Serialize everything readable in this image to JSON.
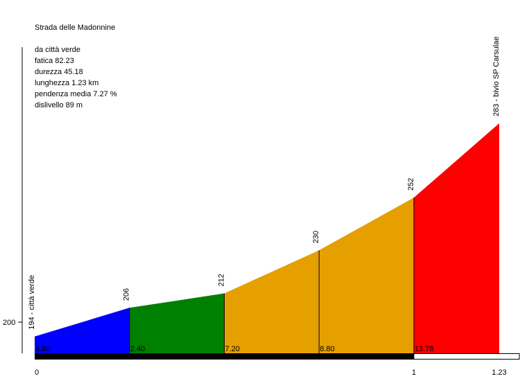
{
  "chart_data": {
    "type": "area",
    "title": "Strada delle Madonnine",
    "info_lines": [
      "da città verde",
      "fatica 82.23",
      "durezza 45.18",
      "lunghezza 1.23 km",
      "pendenza media 7.27 %",
      "dislivello 89 m"
    ],
    "points": [
      {
        "x": 0.0,
        "y": 194,
        "label": "194 - città verde"
      },
      {
        "x": 0.2,
        "y": 206,
        "label": "206"
      },
      {
        "x": 0.4,
        "y": 212,
        "label": "212"
      },
      {
        "x": 0.6,
        "y": 230,
        "label": "230"
      },
      {
        "x": 0.8,
        "y": 252,
        "label": "252"
      },
      {
        "x": 0.98,
        "y": 283,
        "label": "283 - bivio SP Carsulae"
      }
    ],
    "segments": [
      {
        "grade": "4.80",
        "color": "#0000ff"
      },
      {
        "grade": "2.40",
        "color": "#008000"
      },
      {
        "grade": "7.20",
        "color": "#e5a000"
      },
      {
        "grade": "8.80",
        "color": "#e5a000"
      },
      {
        "grade": "13.78",
        "color": "#ff0000"
      }
    ],
    "y_ticks": [
      {
        "value": 200,
        "label": "200"
      }
    ],
    "x_ticks": [
      {
        "value": 0,
        "label": "0"
      },
      {
        "value": 0.8,
        "label": "1"
      },
      {
        "value": 0.98,
        "label": "1.23"
      }
    ],
    "xlim": [
      0,
      0.98
    ],
    "ylim": [
      187,
      294
    ]
  }
}
